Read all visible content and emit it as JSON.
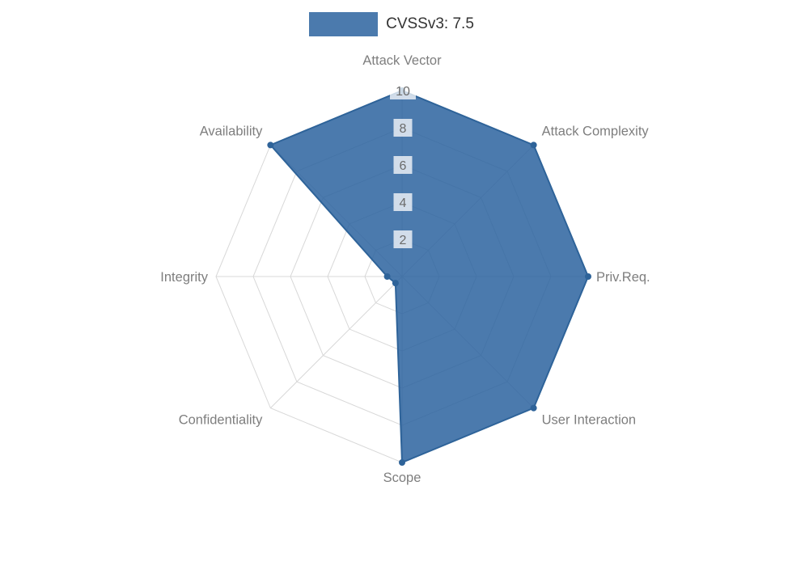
{
  "legend": {
    "label": "CVSSv3: 7.5"
  },
  "chart_data": {
    "type": "radar",
    "title": "CVSSv3: 7.5",
    "categories": [
      "Attack Vector",
      "Attack Complexity",
      "Priv.Req.",
      "User Interaction",
      "Scope",
      "Confidentiality",
      "Integrity",
      "Availability"
    ],
    "series": [
      {
        "name": "CVSSv3: 7.5",
        "values": [
          10,
          10,
          10,
          10,
          10,
          0.5,
          0.8,
          10
        ]
      }
    ],
    "scale": {
      "min": 0,
      "max": 10,
      "ticks": [
        2,
        4,
        6,
        8,
        10
      ]
    },
    "grid": true,
    "legend_position": "top"
  },
  "colors": {
    "series_fill": "rgba(43, 99, 159, 0.85)",
    "series_stroke": "#2e6399",
    "grid": "#d8d8d8",
    "axis_label": "#7e7e7e",
    "tick_text": "#6b6b6b",
    "tick_backdrop": "rgba(255, 255, 255, 0.75)",
    "legend_text": "#333333"
  }
}
